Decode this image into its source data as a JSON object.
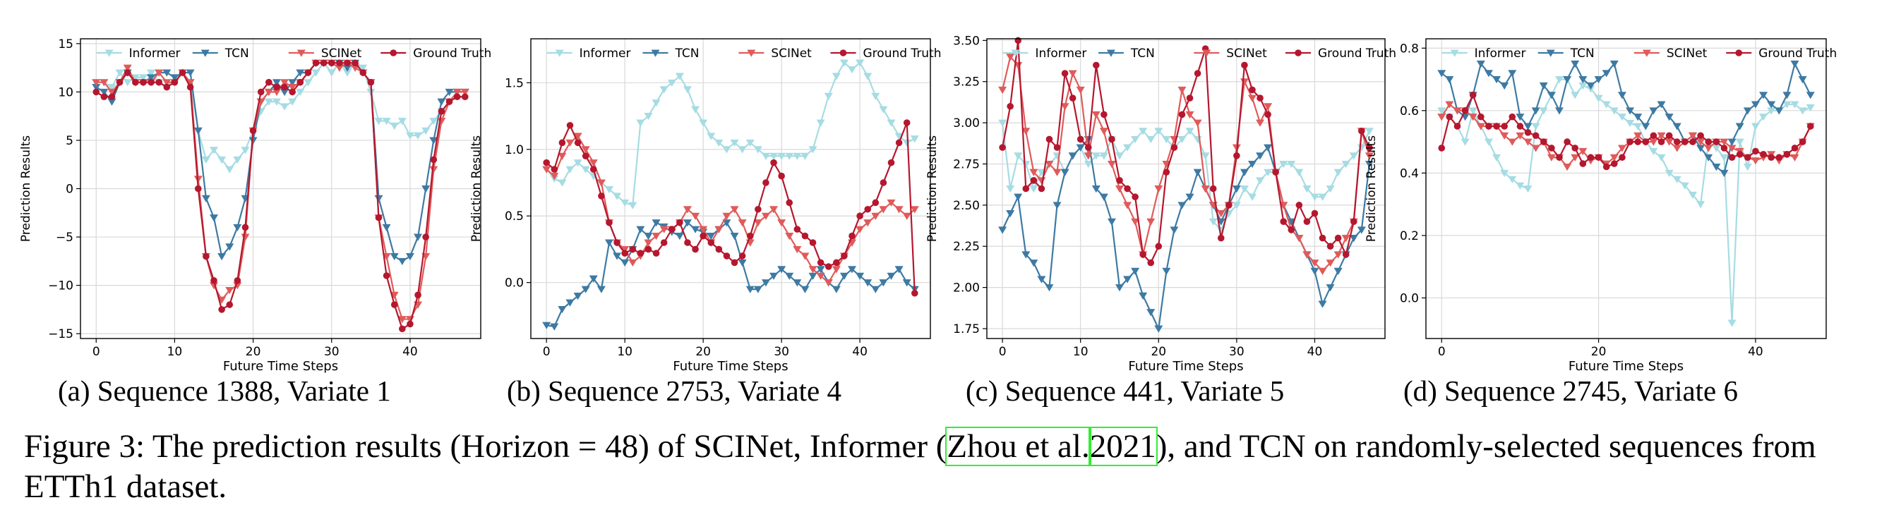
{
  "panel_captions": [
    "(a) Sequence 1388, Variate 1",
    "(b) Sequence 2753, Variate 4",
    "(c) Sequence 441, Variate 5",
    "(d) Sequence 2745, Variate 6"
  ],
  "caption": {
    "prefix": "Figure 3: The prediction results (Horizon = 48) of SCINet, Informer (",
    "cite_author": "Zhou et al.",
    "cite_year": "2021",
    "suffix": "), and TCN on randomly-selected sequences from ETTh1 dataset."
  },
  "colors": {
    "Informer": "#a6dce3",
    "TCN": "#3d7aa3",
    "SCINet": "#e05a5a",
    "Ground Truth": "#b5172e",
    "grid": "#d9d9d9"
  },
  "chart_data": [
    {
      "type": "line",
      "xlabel": "Future Time Steps",
      "ylabel": "Prediction Results",
      "xlim": [
        -2,
        49
      ],
      "ylim": [
        -15.5,
        15.5
      ],
      "xticks": [
        0,
        10,
        20,
        30,
        40
      ],
      "yticks": [
        -15,
        -10,
        -5,
        0,
        5,
        10,
        15
      ],
      "grid": true,
      "legend": "top",
      "series": [
        {
          "name": "Informer",
          "marker": "triangle-down",
          "values": [
            11,
            11,
            10.5,
            12,
            11,
            11.5,
            11.5,
            12,
            11,
            10.5,
            11.5,
            12,
            11,
            6,
            3,
            4,
            3,
            2,
            3,
            4,
            6,
            8,
            9,
            9,
            8.5,
            9,
            10,
            11,
            12,
            13,
            12,
            13,
            12,
            13,
            12.5,
            10,
            7,
            7,
            6.5,
            7,
            5.5,
            5.5,
            6,
            7,
            8,
            9,
            10,
            10
          ]
        },
        {
          "name": "TCN",
          "marker": "triangle-down",
          "values": [
            10.5,
            10,
            9,
            11,
            12,
            11,
            11,
            11.5,
            12,
            12,
            11.5,
            12,
            12,
            6,
            -1,
            -3,
            -7,
            -6,
            -4,
            -1,
            5,
            9,
            10,
            11,
            10,
            11,
            12,
            12,
            13,
            13,
            13,
            13,
            12.5,
            13,
            12,
            11,
            -1,
            -4,
            -7,
            -7.5,
            -7,
            -5,
            0,
            5,
            9,
            10,
            10,
            10
          ]
        },
        {
          "name": "SCINet",
          "marker": "triangle-down",
          "values": [
            11,
            11,
            10,
            11,
            12.5,
            11,
            11,
            11,
            12,
            11,
            11,
            12,
            11,
            1,
            -7,
            -10,
            -11.5,
            -10.5,
            -10,
            -5,
            6,
            9,
            10,
            10,
            11,
            10.5,
            11,
            12,
            13,
            13,
            13,
            12.5,
            13,
            12.5,
            12,
            11,
            -3,
            -7,
            -11,
            -13.5,
            -13.5,
            -12,
            -7,
            2,
            7,
            9,
            10,
            10
          ]
        },
        {
          "name": "Ground Truth",
          "marker": "circle",
          "values": [
            10,
            9.5,
            9.5,
            11,
            12,
            11,
            11,
            11,
            11,
            10.5,
            11,
            12,
            10.5,
            0,
            -7,
            -9.5,
            -12.5,
            -12,
            -9.5,
            -4,
            6,
            10,
            11,
            10.5,
            10.5,
            10,
            11,
            12,
            13,
            13,
            13,
            13,
            13,
            13,
            12,
            11,
            -3,
            -9,
            -12,
            -14.5,
            -14,
            -11,
            -5,
            3,
            8,
            9,
            9.5,
            9.5
          ]
        }
      ]
    },
    {
      "type": "line",
      "xlabel": "Future Time Steps",
      "ylabel": "Prediction Results",
      "xlim": [
        -2,
        49
      ],
      "ylim": [
        -0.42,
        1.83
      ],
      "xticks": [
        0,
        10,
        20,
        30,
        40
      ],
      "yticks": [
        0.0,
        0.5,
        1.0,
        1.5
      ],
      "grid": true,
      "legend": "top",
      "series": [
        {
          "name": "Informer",
          "marker": "triangle-down",
          "values": [
            0.85,
            0.78,
            0.75,
            0.85,
            0.9,
            0.85,
            0.8,
            0.75,
            0.7,
            0.65,
            0.6,
            0.58,
            1.2,
            1.25,
            1.35,
            1.45,
            1.5,
            1.55,
            1.45,
            1.3,
            1.2,
            1.1,
            1.05,
            1.0,
            1.05,
            1.0,
            1.05,
            1.0,
            0.95,
            0.95,
            0.95,
            0.95,
            0.95,
            0.95,
            1.0,
            1.2,
            1.4,
            1.55,
            1.65,
            1.6,
            1.65,
            1.55,
            1.4,
            1.3,
            1.2,
            1.1,
            1.05,
            1.08
          ]
        },
        {
          "name": "TCN",
          "marker": "triangle-down",
          "values": [
            -0.32,
            -0.33,
            -0.2,
            -0.15,
            -0.1,
            -0.05,
            0.03,
            -0.05,
            0.3,
            0.2,
            0.15,
            0.25,
            0.4,
            0.35,
            0.45,
            0.42,
            0.38,
            0.35,
            0.45,
            0.4,
            0.38,
            0.35,
            0.4,
            0.45,
            0.35,
            0.15,
            -0.05,
            -0.05,
            0.0,
            0.05,
            0.1,
            0.05,
            0.0,
            -0.05,
            0.05,
            0.1,
            0.0,
            -0.05,
            0.05,
            0.1,
            0.05,
            0.0,
            -0.05,
            0.0,
            0.05,
            0.1,
            0.0,
            -0.05
          ]
        },
        {
          "name": "SCINet",
          "marker": "triangle-down",
          "values": [
            0.85,
            0.8,
            0.95,
            1.05,
            1.1,
            1.0,
            0.9,
            0.75,
            0.45,
            0.3,
            0.25,
            0.15,
            0.2,
            0.3,
            0.35,
            0.4,
            0.4,
            0.45,
            0.55,
            0.5,
            0.4,
            0.3,
            0.4,
            0.5,
            0.55,
            0.45,
            0.3,
            0.45,
            0.5,
            0.55,
            0.45,
            0.35,
            0.25,
            0.2,
            0.1,
            0.05,
            0.0,
            0.1,
            0.2,
            0.3,
            0.4,
            0.45,
            0.5,
            0.55,
            0.6,
            0.55,
            0.5,
            0.55
          ]
        },
        {
          "name": "Ground Truth",
          "marker": "circle",
          "values": [
            0.9,
            0.85,
            1.05,
            1.18,
            1.05,
            0.95,
            0.85,
            0.65,
            0.45,
            0.3,
            0.22,
            0.25,
            0.22,
            0.25,
            0.22,
            0.3,
            0.4,
            0.45,
            0.3,
            0.25,
            0.35,
            0.3,
            0.25,
            0.2,
            0.15,
            0.2,
            0.35,
            0.55,
            0.75,
            0.9,
            0.8,
            0.6,
            0.4,
            0.35,
            0.3,
            0.15,
            0.12,
            0.15,
            0.2,
            0.35,
            0.5,
            0.55,
            0.6,
            0.75,
            0.9,
            1.05,
            1.2,
            -0.08
          ]
        }
      ]
    },
    {
      "type": "line",
      "xlabel": "Future Time Steps",
      "ylabel": "Prediction Results",
      "xlim": [
        -2,
        49
      ],
      "ylim": [
        1.69,
        3.51
      ],
      "xticks": [
        0,
        10,
        20,
        30,
        40
      ],
      "yticks": [
        1.75,
        2.0,
        2.25,
        2.5,
        2.75,
        3.0,
        3.25,
        3.5
      ],
      "grid": true,
      "legend": "top",
      "series": [
        {
          "name": "Informer",
          "marker": "triangle-down",
          "values": [
            3.0,
            2.6,
            2.8,
            2.75,
            2.6,
            2.7,
            2.75,
            2.8,
            2.7,
            2.8,
            2.85,
            2.75,
            2.8,
            2.8,
            2.9,
            2.8,
            2.85,
            2.9,
            2.95,
            2.9,
            2.95,
            2.9,
            2.85,
            2.9,
            2.95,
            2.9,
            2.8,
            2.4,
            2.35,
            2.45,
            2.5,
            2.6,
            2.55,
            2.65,
            2.7,
            2.7,
            2.75,
            2.75,
            2.7,
            2.6,
            2.55,
            2.55,
            2.6,
            2.7,
            2.75,
            2.8,
            2.85,
            2.95
          ]
        },
        {
          "name": "TCN",
          "marker": "triangle-down",
          "values": [
            2.35,
            2.45,
            2.55,
            2.2,
            2.15,
            2.05,
            2.0,
            2.5,
            2.7,
            2.8,
            2.85,
            2.9,
            2.6,
            2.55,
            2.4,
            2.0,
            2.05,
            2.1,
            1.95,
            1.85,
            1.75,
            2.1,
            2.35,
            2.5,
            2.55,
            2.7,
            2.6,
            2.5,
            2.4,
            2.5,
            2.6,
            2.7,
            2.75,
            2.8,
            2.85,
            2.7,
            2.5,
            2.4,
            2.3,
            2.2,
            2.1,
            1.9,
            2.0,
            2.1,
            2.2,
            2.3,
            2.35,
            2.75
          ]
        },
        {
          "name": "SCINet",
          "marker": "triangle-down",
          "values": [
            3.2,
            3.4,
            3.35,
            2.95,
            2.7,
            2.65,
            2.75,
            2.7,
            3.1,
            3.3,
            3.2,
            2.8,
            3.05,
            2.95,
            2.75,
            2.6,
            2.5,
            2.4,
            2.2,
            2.4,
            2.6,
            2.75,
            2.9,
            3.2,
            3.05,
            3.0,
            2.6,
            2.5,
            2.45,
            2.5,
            2.85,
            3.25,
            3.15,
            3.0,
            3.1,
            2.7,
            2.5,
            2.35,
            2.3,
            2.2,
            2.15,
            2.1,
            2.15,
            2.2,
            2.3,
            2.4,
            2.95,
            2.8
          ]
        },
        {
          "name": "Ground Truth",
          "marker": "circle",
          "values": [
            2.85,
            3.1,
            3.5,
            2.6,
            2.65,
            2.6,
            2.9,
            2.85,
            3.3,
            3.15,
            2.9,
            2.85,
            3.35,
            3.05,
            2.9,
            2.65,
            2.6,
            2.55,
            2.2,
            2.15,
            2.25,
            2.7,
            2.85,
            3.05,
            3.15,
            3.3,
            3.45,
            2.6,
            2.3,
            2.5,
            2.8,
            3.35,
            3.2,
            3.15,
            3.05,
            2.7,
            2.4,
            2.35,
            2.5,
            2.4,
            2.45,
            2.3,
            2.25,
            2.3,
            2.2,
            2.4,
            2.95,
            2.85
          ]
        }
      ]
    },
    {
      "type": "line",
      "xlabel": "Future Time Steps",
      "ylabel": "Prediction Results",
      "xlim": [
        -2,
        49
      ],
      "ylim": [
        -0.13,
        0.83
      ],
      "xticks": [
        0,
        20,
        40
      ],
      "yticks": [
        0.0,
        0.2,
        0.4,
        0.6,
        0.8
      ],
      "grid": true,
      "legend": "top",
      "series": [
        {
          "name": "Informer",
          "marker": "triangle-down",
          "values": [
            0.6,
            0.58,
            0.55,
            0.5,
            0.6,
            0.55,
            0.5,
            0.45,
            0.4,
            0.38,
            0.36,
            0.35,
            0.55,
            0.6,
            0.65,
            0.7,
            0.7,
            0.65,
            0.68,
            0.67,
            0.64,
            0.62,
            0.6,
            0.58,
            0.56,
            0.55,
            0.5,
            0.47,
            0.45,
            0.4,
            0.38,
            0.36,
            0.33,
            0.3,
            0.5,
            0.48,
            0.45,
            -0.08,
            0.5,
            0.42,
            0.55,
            0.58,
            0.6,
            0.6,
            0.62,
            0.62,
            0.6,
            0.61
          ]
        },
        {
          "name": "TCN",
          "marker": "triangle-down",
          "values": [
            0.72,
            0.7,
            0.6,
            0.58,
            0.65,
            0.75,
            0.72,
            0.7,
            0.68,
            0.72,
            0.58,
            0.55,
            0.6,
            0.68,
            0.65,
            0.6,
            0.7,
            0.75,
            0.7,
            0.68,
            0.7,
            0.72,
            0.75,
            0.65,
            0.6,
            0.58,
            0.55,
            0.6,
            0.62,
            0.58,
            0.55,
            0.5,
            0.52,
            0.48,
            0.45,
            0.42,
            0.4,
            0.5,
            0.55,
            0.6,
            0.62,
            0.65,
            0.62,
            0.6,
            0.65,
            0.75,
            0.7,
            0.65
          ]
        },
        {
          "name": "SCINet",
          "marker": "triangle-down",
          "values": [
            0.58,
            0.62,
            0.6,
            0.6,
            0.58,
            0.55,
            0.55,
            0.55,
            0.52,
            0.5,
            0.52,
            0.5,
            0.48,
            0.5,
            0.45,
            0.45,
            0.42,
            0.45,
            0.47,
            0.44,
            0.45,
            0.43,
            0.45,
            0.48,
            0.5,
            0.52,
            0.5,
            0.5,
            0.52,
            0.5,
            0.48,
            0.5,
            0.52,
            0.5,
            0.48,
            0.5,
            0.5,
            0.48,
            0.47,
            0.45,
            0.44,
            0.45,
            0.46,
            0.44,
            0.46,
            0.45,
            0.5,
            0.55
          ]
        },
        {
          "name": "Ground Truth",
          "marker": "circle",
          "values": [
            0.48,
            0.58,
            0.55,
            0.6,
            0.65,
            0.58,
            0.55,
            0.55,
            0.55,
            0.58,
            0.55,
            0.53,
            0.52,
            0.5,
            0.48,
            0.45,
            0.5,
            0.48,
            0.43,
            0.45,
            0.45,
            0.42,
            0.43,
            0.45,
            0.5,
            0.5,
            0.5,
            0.52,
            0.5,
            0.52,
            0.5,
            0.5,
            0.5,
            0.52,
            0.5,
            0.5,
            0.48,
            0.45,
            0.46,
            0.45,
            0.47,
            0.46,
            0.45,
            0.45,
            0.46,
            0.48,
            0.5,
            0.55
          ]
        }
      ]
    }
  ]
}
